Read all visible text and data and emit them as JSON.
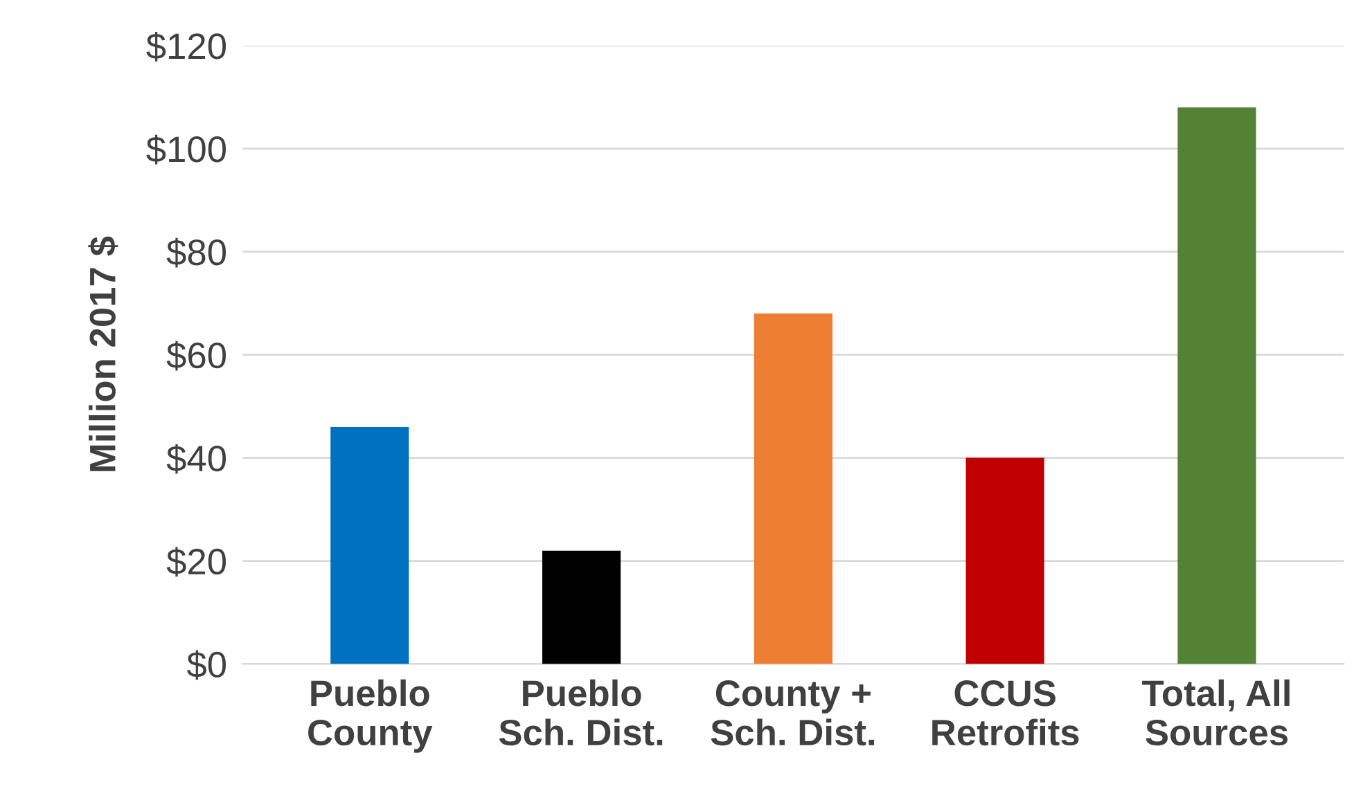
{
  "chart_data": {
    "type": "bar",
    "ylabel": "Million 2017 $",
    "categories": [
      "Pueblo\nCounty",
      "Pueblo\nSch. Dist.",
      "County +\nSch. Dist.",
      "CCUS\nRetrofits",
      "Total, All\nSources"
    ],
    "values": [
      46,
      22,
      68,
      40,
      108
    ],
    "colors": [
      "#0070c0",
      "#000000",
      "#ed7d31",
      "#c00000",
      "#548235"
    ],
    "ylim": [
      0,
      120
    ],
    "yticks": [
      {
        "value": 0,
        "label": "$0"
      },
      {
        "value": 20,
        "label": "$20"
      },
      {
        "value": 40,
        "label": "$40"
      },
      {
        "value": 60,
        "label": "$60"
      },
      {
        "value": 80,
        "label": "$80"
      },
      {
        "value": 100,
        "label": "$100"
      },
      {
        "value": 120,
        "label": "$120"
      }
    ],
    "grid": "y",
    "legend": false
  }
}
